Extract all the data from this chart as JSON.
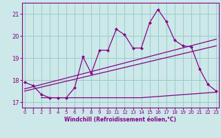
{
  "xlabel": "Windchill (Refroidissement éolien,°C)",
  "bg_color": "#cce8e8",
  "line_color": "#880088",
  "grid_color": "#99cccc",
  "x_ticks": [
    0,
    1,
    2,
    3,
    4,
    5,
    6,
    7,
    8,
    9,
    10,
    11,
    12,
    13,
    14,
    15,
    16,
    17,
    18,
    19,
    20,
    21,
    22,
    23
  ],
  "ylim": [
    16.75,
    21.5
  ],
  "y_ticks": [
    17,
    18,
    19,
    20,
    21
  ],
  "xlim": [
    -0.3,
    23.3
  ],
  "line1_x": [
    0,
    1,
    2,
    3,
    4,
    5,
    6,
    7,
    8,
    9,
    10,
    11,
    12,
    13,
    14,
    15,
    16,
    17,
    18,
    19,
    20,
    21,
    22,
    23
  ],
  "line1_y": [
    17.9,
    17.75,
    17.35,
    17.2,
    17.2,
    17.2,
    17.65,
    19.05,
    18.3,
    19.35,
    19.35,
    20.3,
    20.05,
    19.45,
    19.45,
    20.6,
    21.2,
    20.65,
    19.8,
    19.55,
    19.5,
    18.5,
    17.8,
    17.5
  ],
  "line2_x": [
    0,
    23
  ],
  "line2_y": [
    17.5,
    19.55
  ],
  "line3_x": [
    0,
    23
  ],
  "line3_y": [
    17.6,
    19.85
  ],
  "line4_x": [
    2,
    14,
    23
  ],
  "line4_y": [
    17.2,
    17.2,
    17.45
  ]
}
